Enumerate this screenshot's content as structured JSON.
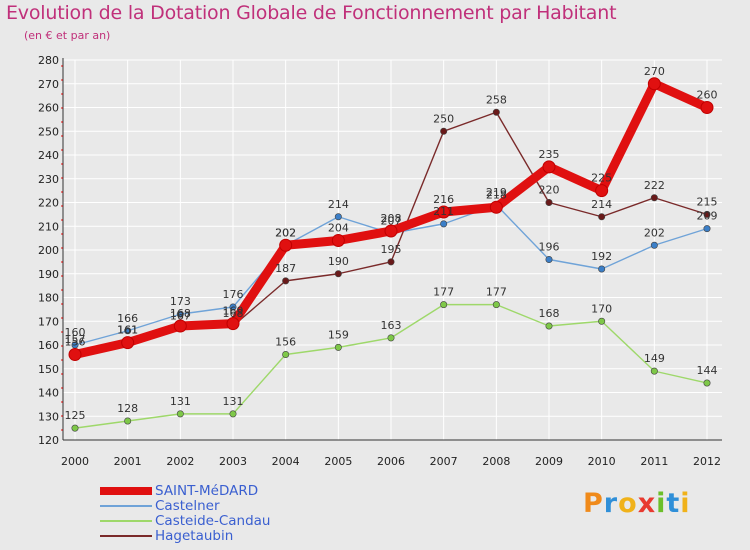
{
  "header": {
    "title": "Evolution de la Dotation Globale de Fonctionnement par Habitant",
    "subtitle": "(en € et par an)"
  },
  "logo": {
    "letters": [
      "P",
      "r",
      "o",
      "x",
      "i",
      "t",
      "i"
    ],
    "colors": [
      "#f08a1a",
      "#2f8fd8",
      "#f0b21a",
      "#e83a30",
      "#6cbf2a",
      "#2f8fd8",
      "#f0b21a"
    ]
  },
  "chart_data": {
    "type": "line",
    "title": "Evolution de la Dotation Globale de Fonctionnement par Habitant",
    "subtitle": "(en € et par an)",
    "x": [
      "2000",
      "2001",
      "2002",
      "2003",
      "2004",
      "2005",
      "2006",
      "2007",
      "2008",
      "2009",
      "2010",
      "2011",
      "2012"
    ],
    "ylim": [
      120,
      280
    ],
    "yticks": [
      120,
      130,
      140,
      150,
      160,
      170,
      180,
      190,
      200,
      210,
      220,
      230,
      240,
      250,
      260,
      270,
      280
    ],
    "grid": true,
    "legend_position": "bottom-left",
    "series": [
      {
        "name": "SAINT-MéDARD",
        "color": "#e01010",
        "marker": "#e01010",
        "values": [
          156,
          161,
          168,
          169,
          202,
          204,
          208,
          216,
          218,
          235,
          225,
          270,
          260
        ],
        "labels": [
          "156",
          "161",
          "168",
          "169",
          "202",
          "204",
          "208",
          "216",
          "218",
          "235",
          "225",
          "270",
          "260"
        ]
      },
      {
        "name": "Castelner",
        "color": "#6fa3d8",
        "marker": "#3b7fc8",
        "values": [
          160,
          166,
          173,
          176,
          202,
          214,
          207,
          211,
          219,
          196,
          192,
          202,
          209
        ],
        "labels": [
          "160",
          "166",
          "173",
          "176",
          "202",
          "214",
          "207",
          "211",
          "219",
          "196",
          "192",
          "202",
          "209"
        ]
      },
      {
        "name": "Casteide-Candau",
        "color": "#9ed86a",
        "marker": "#7ec848",
        "values": [
          125,
          128,
          131,
          131,
          156,
          159,
          163,
          177,
          177,
          168,
          170,
          149,
          144
        ],
        "labels": [
          "125",
          "128",
          "131",
          "131",
          "156",
          "159",
          "163",
          "177",
          "177",
          "168",
          "170",
          "149",
          "144"
        ]
      },
      {
        "name": "Hagetaubin",
        "color": "#7a2a2a",
        "marker": "#6a1a1a",
        "values": [
          157,
          161,
          167,
          168,
          187,
          190,
          195,
          250,
          258,
          220,
          214,
          222,
          215
        ],
        "labels": [
          "157",
          "161",
          "167",
          "168",
          "187",
          "190",
          "195",
          "250",
          "258",
          "220",
          "214",
          "222",
          "215"
        ]
      }
    ]
  }
}
